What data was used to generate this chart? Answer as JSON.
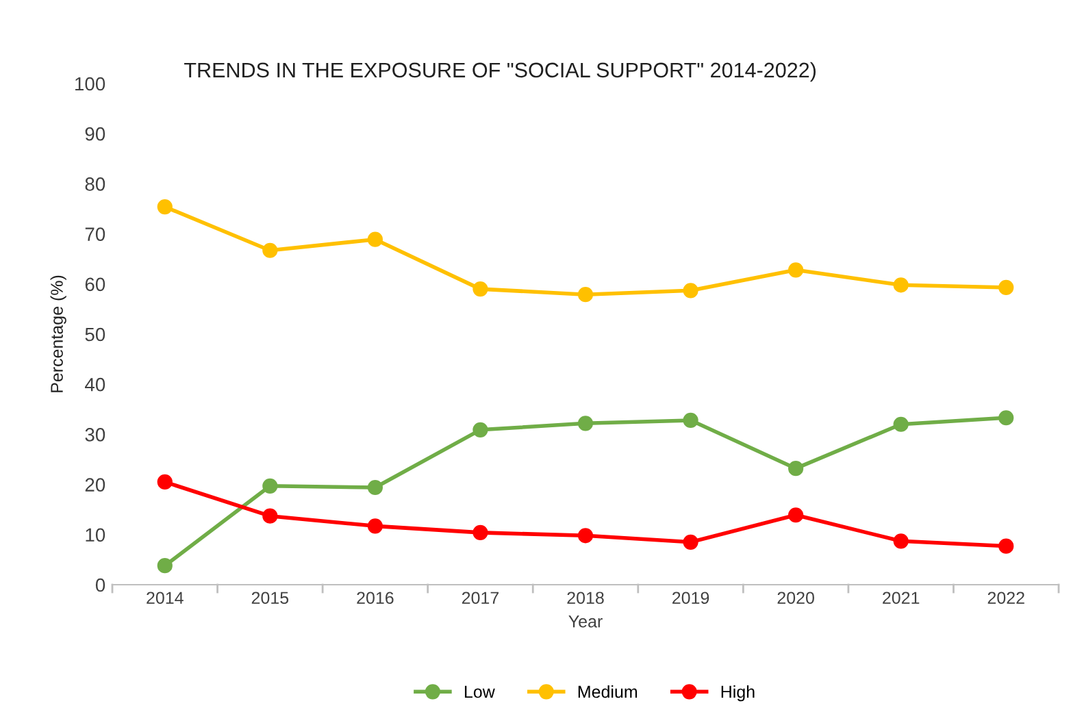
{
  "chart_data": {
    "type": "line",
    "title": "TRENDS IN THE EXPOSURE OF \"SOCIAL SUPPORT\" 2014-2022)",
    "xlabel": "Year",
    "ylabel": "Percentage (%)",
    "categories": [
      "2014",
      "2015",
      "2016",
      "2017",
      "2018",
      "2019",
      "2020",
      "2021",
      "2022"
    ],
    "series": [
      {
        "name": "Low",
        "color": "#70ad47",
        "values": [
          3.8,
          19.7,
          19.4,
          30.9,
          32.2,
          32.8,
          23.2,
          32.0,
          33.3
        ]
      },
      {
        "name": "Medium",
        "color": "#ffc000",
        "values": [
          75.4,
          66.7,
          68.9,
          59.0,
          57.9,
          58.7,
          62.8,
          59.8,
          59.3
        ]
      },
      {
        "name": "High",
        "color": "#ff0000",
        "values": [
          20.5,
          13.7,
          11.7,
          10.4,
          9.8,
          8.5,
          13.9,
          8.7,
          7.7
        ]
      }
    ],
    "ylim": [
      0,
      100
    ],
    "yticks": [
      0,
      10,
      20,
      30,
      40,
      50,
      60,
      70,
      80,
      90,
      100
    ],
    "grid": false,
    "legend": "bottom",
    "marker": "circle",
    "line_style": "solid"
  }
}
